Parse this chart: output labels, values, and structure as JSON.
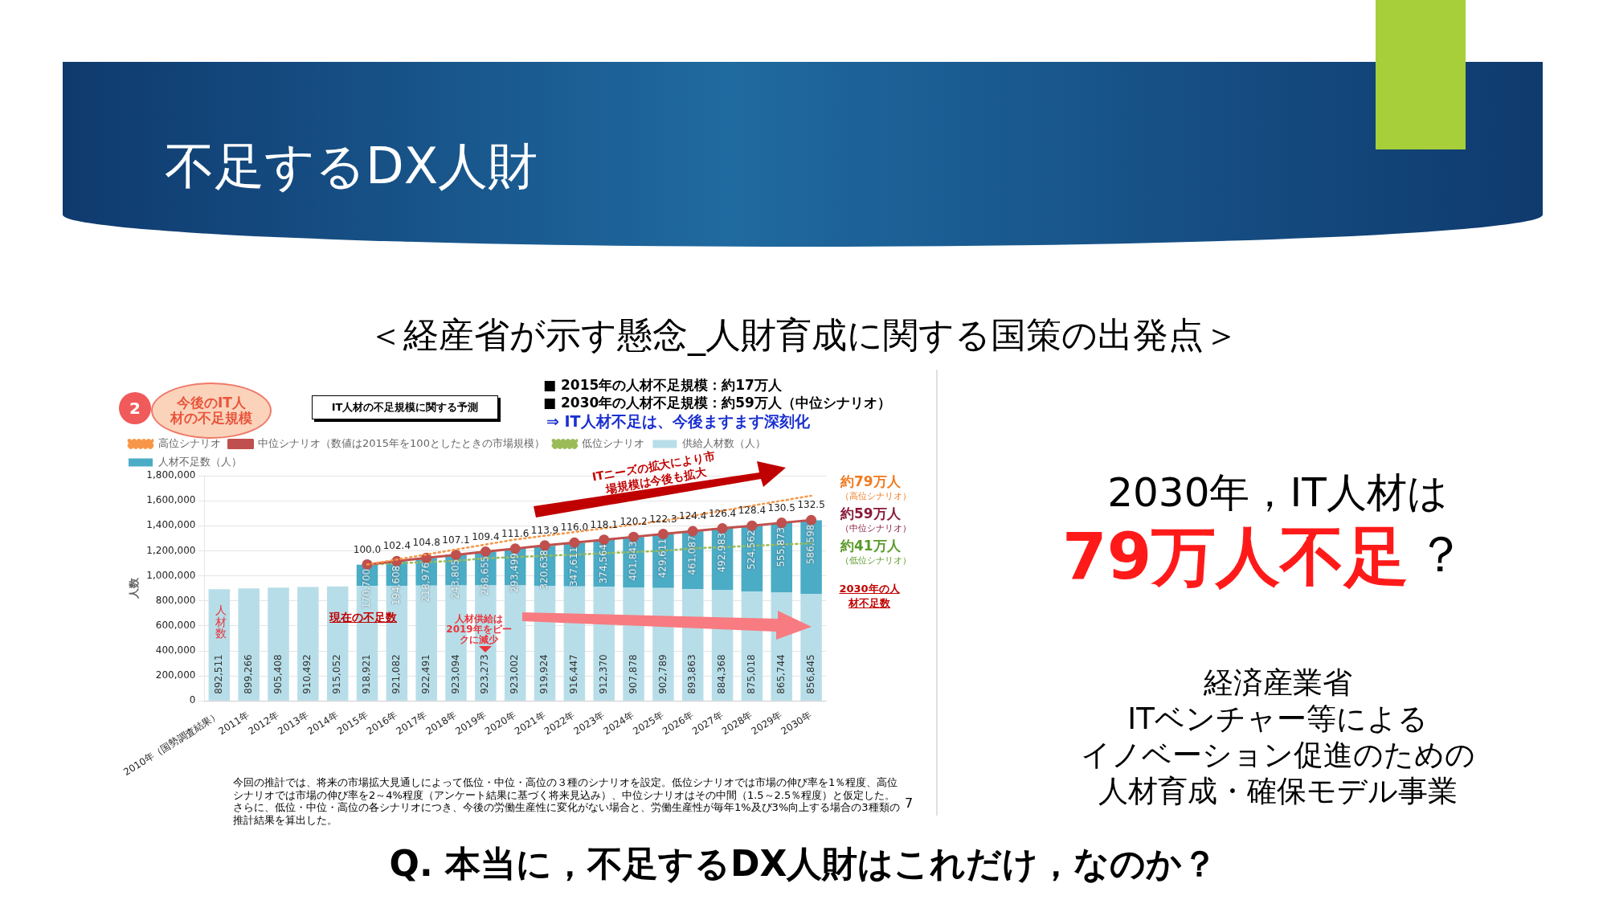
{
  "chart_data": {
    "type": "bar",
    "title": "不足するDX人財",
    "subtitle": "＜経産省が示す懸念_人財育成に関する国策の出発点＞",
    "ylabel": "人数",
    "categories": [
      "2010年（国勢調査結果）",
      "2011年",
      "2012年",
      "2013年",
      "2014年",
      "2015年",
      "2016年",
      "2017年",
      "2018年",
      "2019年",
      "2020年",
      "2021年",
      "2022年",
      "2023年",
      "2024年",
      "2025年",
      "2026年",
      "2027年",
      "2028年",
      "2029年",
      "2030年"
    ],
    "series": [
      {
        "name": "供給人材数（人）",
        "color": "#b7dee8",
        "values": [
          892511,
          899266,
          905408,
          910492,
          915052,
          918921,
          921082,
          922491,
          923094,
          923273,
          923002,
          919924,
          916447,
          912370,
          907878,
          902789,
          893863,
          884368,
          875018,
          865744,
          856845
        ],
        "value_labels": [
          "892,511",
          "899,266",
          "905,408",
          "910,492",
          "915,052",
          "918,921",
          "921,082",
          "922,491",
          "923,094",
          "923,273",
          "923,002",
          "919,924",
          "916,447",
          "912,370",
          "907,878",
          "902,789",
          "893,863",
          "884,368",
          "875,018",
          "865,744",
          "856,845"
        ]
      },
      {
        "name": "人材不足数（人）",
        "color": "#4bacc6",
        "values": [
          null,
          null,
          null,
          null,
          null,
          170700,
          194608,
          218976,
          243805,
          268655,
          293499,
          320638,
          347611,
          374564,
          401843,
          429611,
          461087,
          492983,
          524562,
          555873,
          586598
        ],
        "value_labels": [
          null,
          null,
          null,
          null,
          null,
          "170,700",
          "194,608",
          "218,976",
          "243,805",
          "268,655",
          "293,499",
          "320,638",
          "347,611",
          "374,564",
          "401,843",
          "429,611",
          "461,087",
          "492,983",
          "524,562",
          "555,873",
          "586,598"
        ]
      },
      {
        "name": "高位シナリオ",
        "type": "line",
        "color": "#f79646",
        "line_style": "dotted",
        "marker": "none",
        "values": [
          null,
          null,
          null,
          null,
          null,
          1090000,
          1130000,
          1170000,
          1210000,
          1250000,
          1290000,
          1320000,
          1350000,
          1380000,
          1410000,
          1440000,
          1480000,
          1520000,
          1560000,
          1600000,
          1640000
        ]
      },
      {
        "name": "中位シナリオ（数値は2015年を100としたときの市場規模）",
        "type": "line",
        "axis": "y2",
        "color": "#c0504d",
        "line_style": "solid",
        "marker": "circle",
        "values": [
          null,
          null,
          null,
          null,
          null,
          100.0,
          102.4,
          104.8,
          107.1,
          109.4,
          111.6,
          113.9,
          116.0,
          118.1,
          120.2,
          122.3,
          124.4,
          126.4,
          128.4,
          130.5,
          132.5
        ],
        "value_labels": [
          null,
          null,
          null,
          null,
          null,
          "100.0",
          "102.4",
          "104.8",
          "107.1",
          "109.4",
          "111.6",
          "113.9",
          "116.0",
          "118.1",
          "120.2",
          "122.3",
          "124.4",
          "126.4",
          "128.4",
          "130.5",
          "132.5"
        ]
      },
      {
        "name": "低位シナリオ",
        "type": "line",
        "color": "#9bbb59",
        "line_style": "dotted",
        "marker": "none",
        "values": [
          null,
          null,
          null,
          null,
          null,
          1090000,
          1100000,
          1110000,
          1120000,
          1140000,
          1150000,
          1160000,
          1170000,
          1180000,
          1190000,
          1200000,
          1220000,
          1230000,
          1240000,
          1250000,
          1260000
        ]
      }
    ],
    "stacked": true,
    "grid": "y",
    "legend": "top left",
    "ylim": [
      0,
      1800000
    ],
    "yticks": [
      {
        "value": 0,
        "label": "0"
      },
      {
        "value": 200000,
        "label": "200,000"
      },
      {
        "value": 400000,
        "label": "400,000"
      },
      {
        "value": 600000,
        "label": "600,000"
      },
      {
        "value": 800000,
        "label": "800,000"
      },
      {
        "value": 1000000,
        "label": "1,000,000"
      },
      {
        "value": 1200000,
        "label": "1,200,000"
      },
      {
        "value": 1400000,
        "label": "1,400,000"
      },
      {
        "value": 1600000,
        "label": "1,600,000"
      },
      {
        "value": 1800000,
        "label": "1,800,000"
      }
    ],
    "y2lim": [
      0,
      165
    ],
    "annotations": [
      "2",
      "今後のIT人材の不足規模",
      "IT人材の不足規模に関する予測",
      "■ 2015年の人材不足規模：約17万人",
      "■ 2030年の人材不足規模：約59万人（中位シナリオ）",
      "⇒ IT人材不足は、今後ますます深刻化",
      "ITニーズの拡大により市場規模は今後も拡大",
      "約79万人",
      "（高位シナリオ）",
      "約59万人",
      "（中位シナリオ）",
      "約41万人",
      "（低位シナリオ）",
      "2030年の人材不足数",
      "現在の不足数",
      "人材供給は2019年をピークに減少",
      "人材数",
      "今回の推計では、将来の市場拡大見通しによって低位・中位・高位の３種のシナリオを設定。低位シナリオでは市場の伸び率を1％程度、高位シナリオでは市場の伸び率を2～4%程度（アンケート結果に基づく将来見込み）、中位シナリオはその中間（1.5～2.5％程度）と仮定した。さらに、低位・中位・高位の各シナリオにつき、今後の労働生産性に変化がない場合と、労働生産性が毎年1%及び3%向上する場合の3種類の推計結果を算出した。",
      "7",
      "2030年，IT人材は",
      "79万人不足",
      "？",
      "経済産業省",
      "ITベンチャー等による",
      "イノベーション促進のための",
      "人材育成・確保モデル事業",
      "Q. 本当に，不足するDX人財はこれだけ，なのか？"
    ]
  }
}
